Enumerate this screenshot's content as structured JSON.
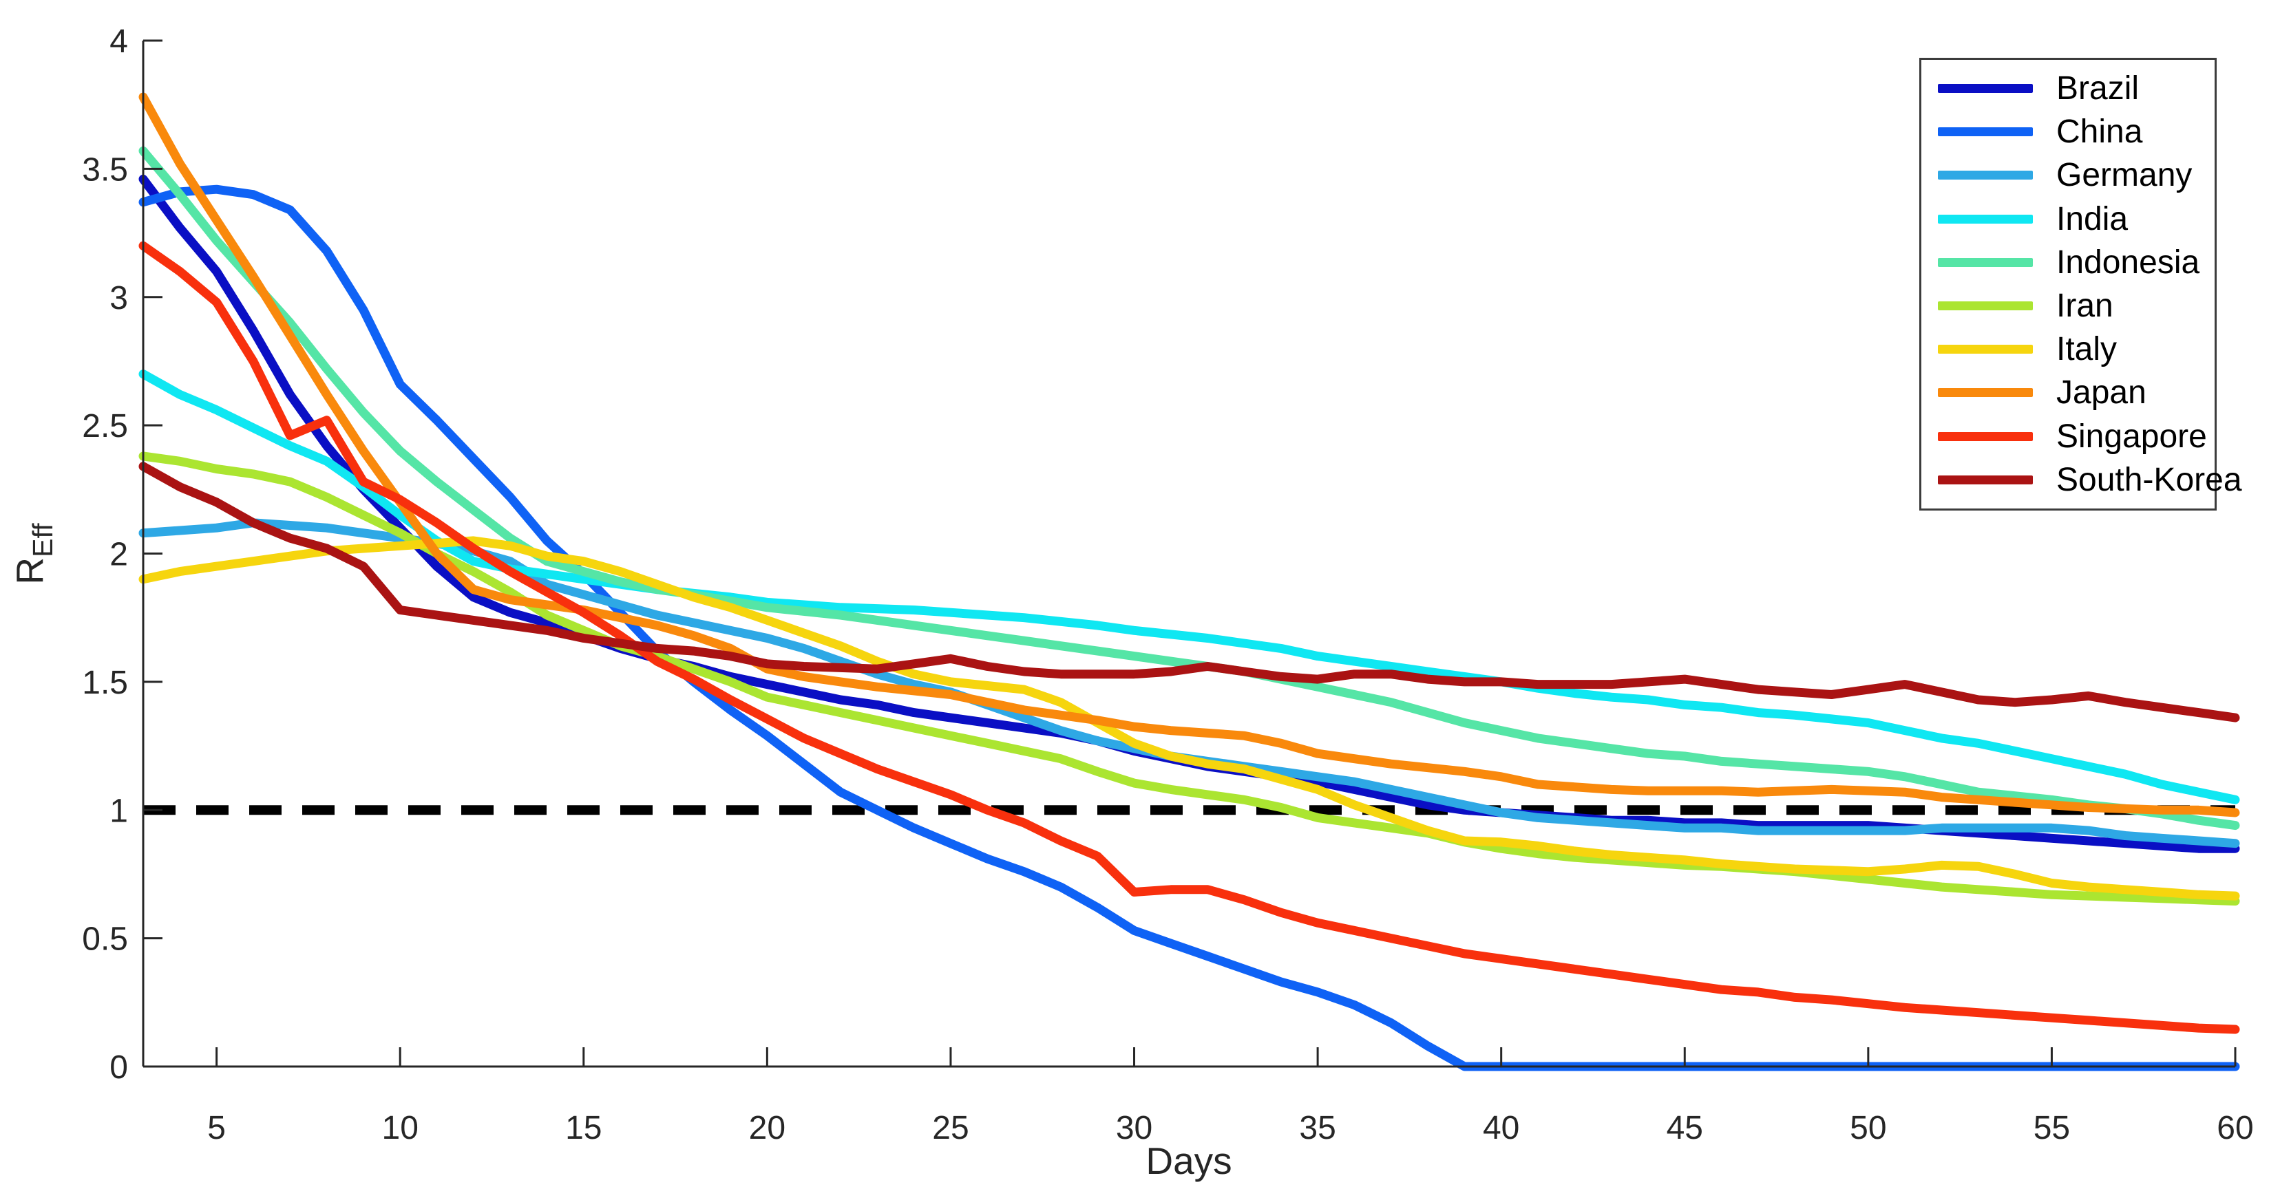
{
  "chart_data": {
    "type": "line",
    "title": "",
    "xlabel": "Days",
    "ylabel": "R_Eff",
    "ylabel_base": "R",
    "ylabel_subscript": "Eff",
    "xlim": [
      3,
      60
    ],
    "ylim": [
      0,
      4
    ],
    "x_ticks": [
      5,
      10,
      15,
      20,
      25,
      30,
      35,
      40,
      45,
      50,
      55,
      60
    ],
    "y_ticks": [
      0,
      0.5,
      1,
      1.5,
      2,
      2.5,
      3,
      3.5,
      4
    ],
    "y_tick_labels": [
      "0",
      "0.5",
      "1",
      "1.5",
      "2",
      "2.5",
      "3",
      "3.5",
      "4"
    ],
    "grid": false,
    "legend_position": "northeast",
    "reference_line": {
      "y": 1,
      "style": "dashed",
      "color": "#000000"
    },
    "x": [
      3,
      4,
      5,
      6,
      7,
      8,
      9,
      10,
      11,
      12,
      13,
      14,
      15,
      16,
      17,
      18,
      19,
      20,
      21,
      22,
      23,
      24,
      25,
      26,
      27,
      28,
      29,
      30,
      31,
      32,
      33,
      34,
      35,
      36,
      37,
      38,
      39,
      40,
      41,
      42,
      43,
      44,
      45,
      46,
      47,
      48,
      49,
      50,
      51,
      52,
      53,
      54,
      55,
      56,
      57,
      58,
      59,
      60
    ],
    "series": [
      {
        "name": "Brazil",
        "color": "#0a0fc4",
        "values": [
          3.46,
          3.27,
          3.1,
          2.87,
          2.62,
          2.42,
          2.25,
          2.1,
          1.95,
          1.83,
          1.77,
          1.73,
          1.68,
          1.63,
          1.59,
          1.56,
          1.52,
          1.49,
          1.46,
          1.43,
          1.41,
          1.38,
          1.36,
          1.34,
          1.32,
          1.3,
          1.27,
          1.23,
          1.2,
          1.17,
          1.15,
          1.13,
          1.11,
          1.08,
          1.05,
          1.02,
          1.0,
          0.99,
          0.98,
          0.97,
          0.96,
          0.96,
          0.95,
          0.95,
          0.94,
          0.94,
          0.94,
          0.94,
          0.93,
          0.92,
          0.91,
          0.9,
          0.89,
          0.88,
          0.87,
          0.86,
          0.85,
          0.85
        ]
      },
      {
        "name": "China",
        "color": "#0f62f5",
        "values": [
          3.37,
          3.41,
          3.42,
          3.4,
          3.34,
          3.18,
          2.95,
          2.66,
          2.52,
          2.37,
          2.22,
          2.05,
          1.92,
          1.77,
          1.62,
          1.5,
          1.39,
          1.29,
          1.18,
          1.07,
          1.0,
          0.93,
          0.87,
          0.81,
          0.76,
          0.7,
          0.62,
          0.53,
          0.48,
          0.43,
          0.38,
          0.33,
          0.29,
          0.24,
          0.17,
          0.08,
          0.0,
          0.0,
          0.0,
          0.0,
          0.0,
          0.0,
          0.0,
          0.0,
          0.0,
          0.0,
          0.0,
          0.0,
          0.0,
          0.0,
          0.0,
          0.0,
          0.0,
          0.0,
          0.0,
          0.0,
          0.0,
          0.0
        ]
      },
      {
        "name": "Germany",
        "color": "#2ea8e5",
        "values": [
          2.08,
          2.09,
          2.1,
          2.12,
          2.11,
          2.1,
          2.08,
          2.06,
          2.04,
          2.01,
          1.97,
          1.88,
          1.84,
          1.8,
          1.76,
          1.73,
          1.7,
          1.67,
          1.63,
          1.58,
          1.53,
          1.49,
          1.46,
          1.41,
          1.36,
          1.31,
          1.27,
          1.24,
          1.21,
          1.19,
          1.17,
          1.15,
          1.13,
          1.11,
          1.08,
          1.05,
          1.02,
          0.99,
          0.97,
          0.96,
          0.95,
          0.94,
          0.93,
          0.93,
          0.92,
          0.92,
          0.92,
          0.92,
          0.92,
          0.93,
          0.93,
          0.93,
          0.93,
          0.92,
          0.9,
          0.89,
          0.88,
          0.87
        ]
      },
      {
        "name": "India",
        "color": "#0fe7f2",
        "values": [
          2.7,
          2.62,
          2.56,
          2.49,
          2.42,
          2.36,
          2.26,
          2.15,
          2.05,
          1.97,
          1.94,
          1.92,
          1.9,
          1.88,
          1.86,
          1.845,
          1.83,
          1.81,
          1.8,
          1.79,
          1.785,
          1.78,
          1.77,
          1.76,
          1.75,
          1.735,
          1.72,
          1.7,
          1.685,
          1.67,
          1.65,
          1.63,
          1.6,
          1.58,
          1.56,
          1.54,
          1.52,
          1.5,
          1.475,
          1.455,
          1.44,
          1.43,
          1.41,
          1.4,
          1.38,
          1.37,
          1.355,
          1.34,
          1.31,
          1.28,
          1.26,
          1.23,
          1.2,
          1.17,
          1.14,
          1.1,
          1.07,
          1.04
        ]
      },
      {
        "name": "Indonesia",
        "color": "#55e5a6",
        "values": [
          3.57,
          3.4,
          3.22,
          3.06,
          2.9,
          2.72,
          2.55,
          2.4,
          2.28,
          2.17,
          2.06,
          1.97,
          1.93,
          1.89,
          1.86,
          1.84,
          1.815,
          1.79,
          1.775,
          1.76,
          1.74,
          1.72,
          1.7,
          1.68,
          1.66,
          1.64,
          1.62,
          1.6,
          1.58,
          1.56,
          1.54,
          1.51,
          1.48,
          1.45,
          1.42,
          1.38,
          1.34,
          1.31,
          1.28,
          1.26,
          1.24,
          1.22,
          1.21,
          1.19,
          1.18,
          1.17,
          1.16,
          1.15,
          1.13,
          1.1,
          1.07,
          1.055,
          1.04,
          1.02,
          1.005,
          0.985,
          0.96,
          0.94
        ]
      },
      {
        "name": "Iran",
        "color": "#abe531",
        "values": [
          2.38,
          2.36,
          2.33,
          2.31,
          2.28,
          2.22,
          2.15,
          2.08,
          2.0,
          1.93,
          1.85,
          1.76,
          1.7,
          1.64,
          1.6,
          1.55,
          1.5,
          1.44,
          1.41,
          1.38,
          1.35,
          1.32,
          1.29,
          1.26,
          1.23,
          1.2,
          1.15,
          1.105,
          1.08,
          1.06,
          1.04,
          1.01,
          0.97,
          0.95,
          0.93,
          0.91,
          0.875,
          0.85,
          0.83,
          0.815,
          0.805,
          0.795,
          0.785,
          0.78,
          0.77,
          0.76,
          0.745,
          0.73,
          0.715,
          0.7,
          0.69,
          0.68,
          0.67,
          0.665,
          0.66,
          0.655,
          0.65,
          0.645
        ]
      },
      {
        "name": "Italy",
        "color": "#f6d50e",
        "values": [
          1.9,
          1.93,
          1.95,
          1.97,
          1.99,
          2.01,
          2.02,
          2.03,
          2.04,
          2.05,
          2.03,
          1.99,
          1.97,
          1.93,
          1.88,
          1.83,
          1.79,
          1.74,
          1.69,
          1.64,
          1.58,
          1.53,
          1.5,
          1.485,
          1.47,
          1.42,
          1.34,
          1.26,
          1.21,
          1.18,
          1.16,
          1.12,
          1.08,
          1.02,
          0.97,
          0.92,
          0.88,
          0.875,
          0.86,
          0.84,
          0.825,
          0.815,
          0.805,
          0.79,
          0.78,
          0.77,
          0.765,
          0.76,
          0.77,
          0.785,
          0.78,
          0.75,
          0.715,
          0.7,
          0.69,
          0.68,
          0.67,
          0.665
        ]
      },
      {
        "name": "Japan",
        "color": "#f9890c",
        "values": [
          3.78,
          3.52,
          3.3,
          3.08,
          2.85,
          2.62,
          2.4,
          2.2,
          2.0,
          1.86,
          1.82,
          1.8,
          1.78,
          1.75,
          1.72,
          1.68,
          1.63,
          1.55,
          1.52,
          1.5,
          1.48,
          1.465,
          1.45,
          1.42,
          1.39,
          1.37,
          1.35,
          1.325,
          1.31,
          1.3,
          1.29,
          1.26,
          1.22,
          1.2,
          1.18,
          1.165,
          1.15,
          1.13,
          1.1,
          1.09,
          1.08,
          1.075,
          1.075,
          1.075,
          1.07,
          1.075,
          1.08,
          1.075,
          1.07,
          1.05,
          1.04,
          1.03,
          1.02,
          1.01,
          1.005,
          1.0,
          1.0,
          0.99
        ]
      },
      {
        "name": "Singapore",
        "color": "#f8300d",
        "values": [
          3.2,
          3.1,
          2.98,
          2.75,
          2.46,
          2.52,
          2.28,
          2.21,
          2.12,
          2.02,
          1.93,
          1.85,
          1.77,
          1.68,
          1.58,
          1.51,
          1.43,
          1.355,
          1.28,
          1.22,
          1.16,
          1.11,
          1.06,
          1.0,
          0.95,
          0.88,
          0.82,
          0.68,
          0.69,
          0.69,
          0.65,
          0.6,
          0.56,
          0.53,
          0.5,
          0.47,
          0.44,
          0.42,
          0.4,
          0.38,
          0.36,
          0.34,
          0.32,
          0.3,
          0.29,
          0.27,
          0.26,
          0.245,
          0.23,
          0.22,
          0.21,
          0.2,
          0.19,
          0.18,
          0.17,
          0.16,
          0.15,
          0.145
        ]
      },
      {
        "name": "South-Korea",
        "color": "#aa1313",
        "values": [
          2.34,
          2.26,
          2.2,
          2.12,
          2.06,
          2.02,
          1.95,
          1.78,
          1.76,
          1.74,
          1.72,
          1.7,
          1.67,
          1.65,
          1.63,
          1.62,
          1.6,
          1.57,
          1.56,
          1.555,
          1.55,
          1.57,
          1.59,
          1.56,
          1.54,
          1.53,
          1.53,
          1.53,
          1.54,
          1.56,
          1.54,
          1.52,
          1.51,
          1.53,
          1.53,
          1.51,
          1.5,
          1.5,
          1.49,
          1.49,
          1.49,
          1.5,
          1.51,
          1.49,
          1.47,
          1.46,
          1.45,
          1.47,
          1.49,
          1.46,
          1.43,
          1.42,
          1.43,
          1.445,
          1.42,
          1.4,
          1.38,
          1.36
        ]
      }
    ]
  }
}
